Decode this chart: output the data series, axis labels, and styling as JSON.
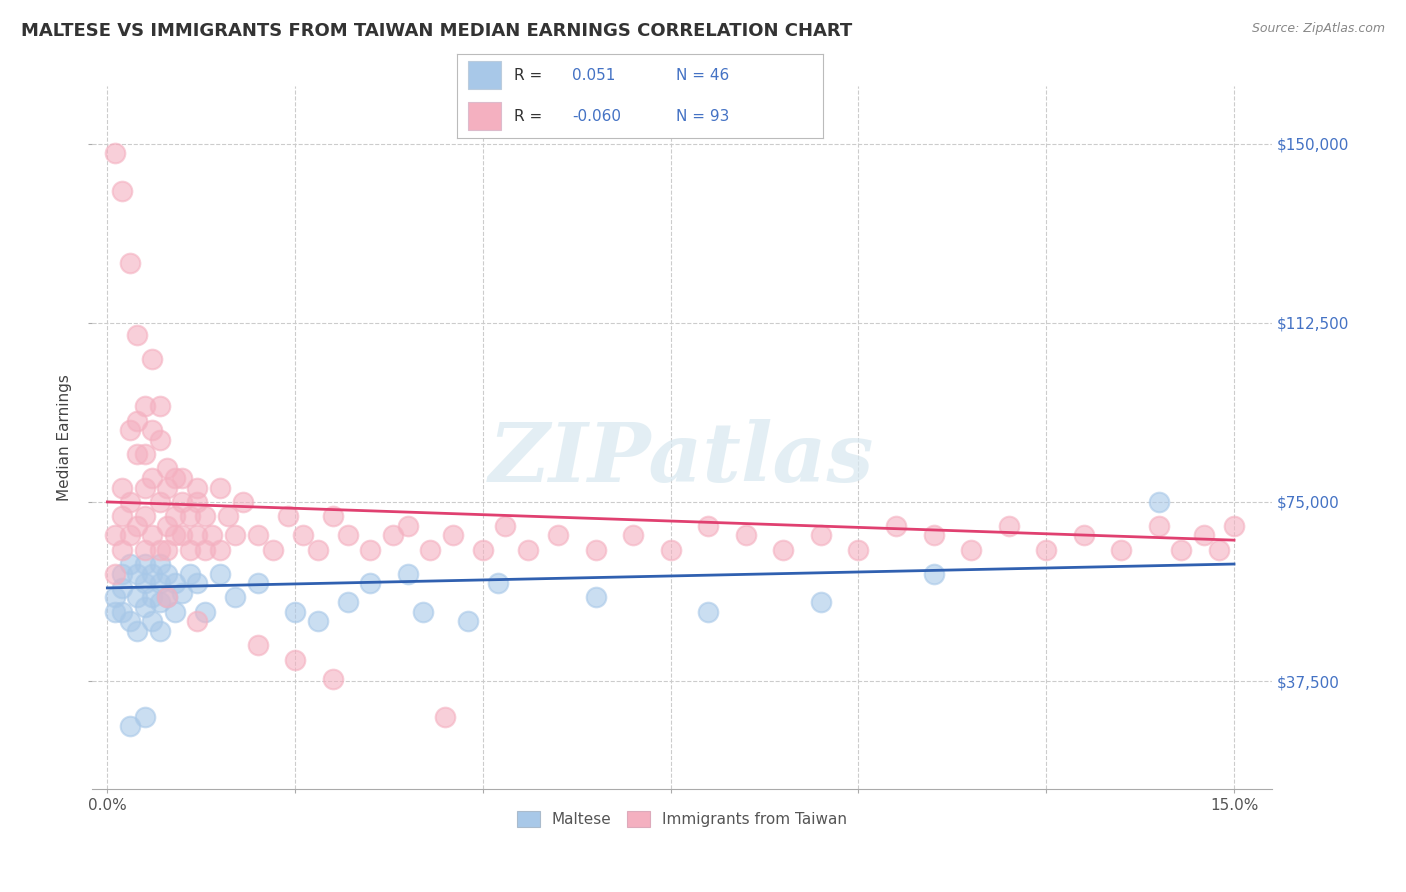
{
  "title": "MALTESE VS IMMIGRANTS FROM TAIWAN MEDIAN EARNINGS CORRELATION CHART",
  "source_text": "Source: ZipAtlas.com",
  "ylabel": "Median Earnings",
  "xlim": [
    -0.002,
    0.155
  ],
  "ylim": [
    15000,
    162000
  ],
  "ytick_vals": [
    37500,
    75000,
    112500,
    150000
  ],
  "ytick_labels": [
    "$37,500",
    "$75,000",
    "$112,500",
    "$150,000"
  ],
  "xtick_vals": [
    0.0,
    0.025,
    0.05,
    0.075,
    0.1,
    0.125,
    0.15
  ],
  "color_blue": "#a8c8e8",
  "color_pink": "#f4b0c0",
  "color_blue_line": "#3060b0",
  "color_pink_line": "#e04070",
  "color_blue_text": "#4472c4",
  "watermark_text": "ZIPatlas",
  "background_color": "#ffffff",
  "grid_color": "#cccccc",
  "title_fontsize": 13,
  "tick_fontsize": 11,
  "ylabel_fontsize": 11,
  "legend_entries": [
    {
      "label": "R =  0.051  N = 46",
      "color_blue": "#a8c8e8"
    },
    {
      "label": "R = -0.060  N = 93",
      "color_pink": "#f4b0c0"
    }
  ]
}
